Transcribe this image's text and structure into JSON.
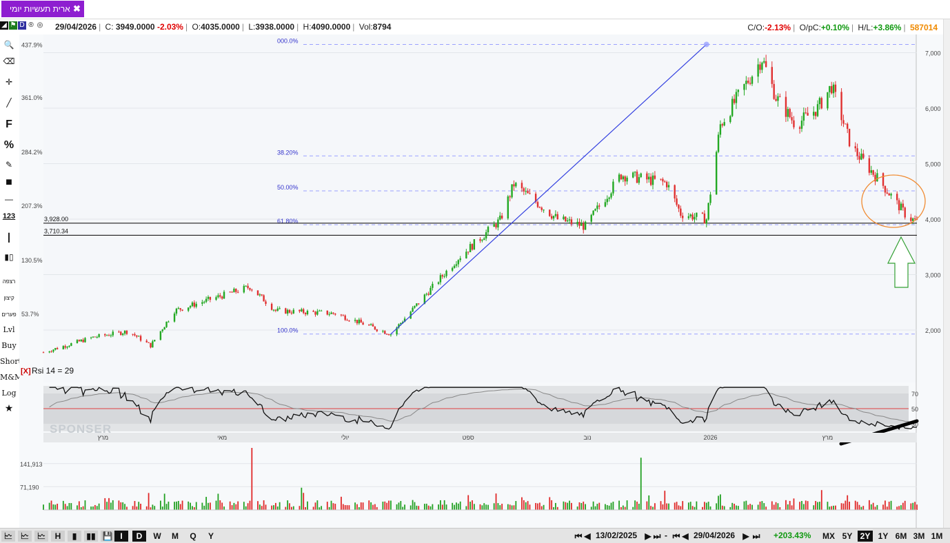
{
  "tab": {
    "title": "ארית תעשיות יומי",
    "close": "✖"
  },
  "info": {
    "date": "29/04/2026",
    "close_label": "C:",
    "close_value": "3949.0000",
    "change_pct": "-2.03%",
    "open_label": "O:",
    "open_value": "4035.0000",
    "low_label": "L:",
    "low_value": "3938.0000",
    "high_label": "H:",
    "high_value": "4090.0000",
    "vol_label": "Vol:",
    "vol_value": "8794",
    "co_label": "C/O:",
    "co_value": "-2.13%",
    "opc_label": "O/pC:",
    "opc_value": "+0.10%",
    "hl_label": "H/L:",
    "hl_value": "+3.86%",
    "code": "587014"
  },
  "toolbar": {
    "items": [
      {
        "name": "search-icon",
        "glyph": "🔍"
      },
      {
        "name": "eraser-icon",
        "glyph": "⌫"
      },
      {
        "name": "crosshair-icon",
        "glyph": "✛"
      },
      {
        "name": "line-tool-icon",
        "glyph": "╱"
      },
      {
        "name": "fibonacci-icon",
        "glyph": "F"
      },
      {
        "name": "percent-icon",
        "glyph": "%"
      },
      {
        "name": "edit-icon",
        "glyph": "✎"
      },
      {
        "name": "fill-icon",
        "glyph": "■"
      },
      {
        "name": "hline-icon",
        "glyph": "—"
      },
      {
        "name": "numbers-icon",
        "glyph": "123"
      },
      {
        "name": "vline-icon",
        "glyph": "┃"
      },
      {
        "name": "candles-icon",
        "glyph": "▮▯"
      }
    ],
    "hebrew": [
      "רצפה",
      "קיצון",
      "פערים"
    ],
    "text_items": [
      "Lvl",
      "Buy",
      "Short",
      "M&M",
      "Log"
    ],
    "star": "★"
  },
  "chart_data": {
    "type": "candlestick",
    "price_axis": {
      "ticks": [
        2000,
        3000,
        4000,
        5000,
        6000,
        7000
      ],
      "labels": [
        "2,000",
        "3,000",
        "4,000",
        "5,000",
        "6,000",
        "7,000"
      ],
      "range": [
        1330,
        7230
      ]
    },
    "pct_axis": {
      "labels": [
        "437.9%",
        "361.0%",
        "284.2%",
        "207.3%",
        "130.5%",
        "53.7%"
      ]
    },
    "hlines": [
      {
        "value": 3928.0,
        "label": "3,928.00"
      },
      {
        "value": 3710.34,
        "label": "3,710.34"
      }
    ],
    "fib_levels": [
      {
        "label": "000.0%",
        "value": 7150
      },
      {
        "label": "38.20%",
        "value": 5140
      },
      {
        "label": "50.00%",
        "value": 4510
      },
      {
        "label": "61.80%",
        "value": 3900
      },
      {
        "label": "100.0%",
        "value": 1930
      }
    ],
    "trendline": {
      "from": [
        "2025-08-07",
        1930
      ],
      "to": [
        "2026-01-13",
        7150
      ]
    },
    "month_labels": [
      "מרץ",
      "מאי",
      "יולי",
      "ספט",
      "נוב",
      "2026",
      "מרץ"
    ],
    "ohlc_keypoints": [
      [
        "2025-02-13",
        1600
      ],
      [
        "2025-03-10",
        1870
      ],
      [
        "2025-03-28",
        1980
      ],
      [
        "2025-04-08",
        1720
      ],
      [
        "2025-04-20",
        2350
      ],
      [
        "2025-05-28",
        2780
      ],
      [
        "2025-06-10",
        2350
      ],
      [
        "2025-07-10",
        2300
      ],
      [
        "2025-08-07",
        1930
      ],
      [
        "2025-09-10",
        3300
      ],
      [
        "2025-10-01",
        3980
      ],
      [
        "2025-10-08",
        4630
      ],
      [
        "2025-10-30",
        4000
      ],
      [
        "2025-11-13",
        3870
      ],
      [
        "2025-12-01",
        4800
      ],
      [
        "2025-12-24",
        4650
      ],
      [
        "2025-12-31",
        4100
      ],
      [
        "2026-01-13",
        4000
      ],
      [
        "2026-01-20",
        5700
      ],
      [
        "2026-02-10",
        6900
      ],
      [
        "2026-02-17",
        6200
      ],
      [
        "2026-02-27",
        5700
      ],
      [
        "2026-03-10",
        6000
      ],
      [
        "2026-03-17",
        6400
      ],
      [
        "2026-03-27",
        5300
      ],
      [
        "2026-04-10",
        4700
      ],
      [
        "2026-04-24",
        4050
      ],
      [
        "2026-04-29",
        3949
      ]
    ],
    "rsi": {
      "label": "Rsi 14 = 29",
      "close_tag": "[X]",
      "levels": [
        30,
        50,
        70
      ],
      "last": 29
    },
    "volume": {
      "labels": [
        "141,913",
        "71,190"
      ],
      "values": [
        141913,
        71190
      ]
    },
    "watermark": "SPONSER"
  },
  "bottombar": {
    "icons": [
      "🗠",
      "🗠",
      "🗠",
      "H",
      "▮",
      "▮▮",
      "💾"
    ],
    "periods": [
      "I",
      "D",
      "W",
      "M",
      "Q",
      "Y"
    ],
    "selected_period": "D",
    "start_date": "13/02/2025",
    "end_date": "29/04/2026",
    "dash": "-",
    "range_change": "+203.43%",
    "ranges": [
      "MX",
      "5Y",
      "2Y",
      "1Y",
      "6M",
      "3M",
      "1M"
    ],
    "selected_range": "2Y"
  }
}
